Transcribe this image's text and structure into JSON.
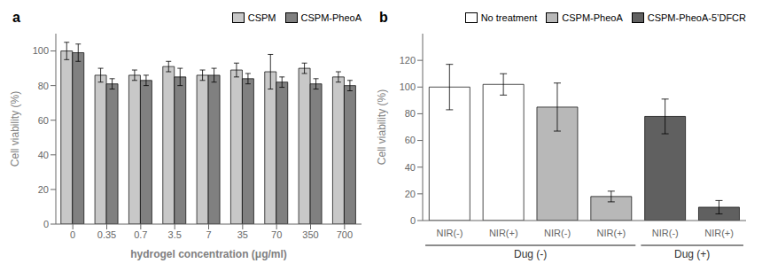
{
  "chart_data": [
    {
      "type": "bar",
      "title": "a",
      "categories": [
        "0",
        "0.35",
        "0.7",
        "3.5",
        "7",
        "35",
        "70",
        "350",
        "700"
      ],
      "series": [
        {
          "name": "CSPM",
          "color": "#c8c8c8",
          "values": [
            100,
            86,
            86,
            91,
            86,
            89,
            88,
            90,
            85
          ],
          "errors": [
            5,
            4,
            3,
            3,
            3,
            4,
            10,
            3,
            3
          ]
        },
        {
          "name": "CSPM-PheoA",
          "color": "#808080",
          "values": [
            99,
            81,
            83,
            85,
            86,
            84,
            82,
            81,
            80
          ],
          "errors": [
            5,
            3,
            3,
            5,
            4,
            3,
            3,
            3,
            3
          ]
        }
      ],
      "xlabel": "hydrogel concentration (μg/ml)",
      "ylabel": "Cell viability (%)",
      "ylim": [
        0,
        110
      ],
      "yticks": [
        0,
        20,
        40,
        60,
        80,
        100
      ],
      "legend": "upper right",
      "grid": false
    },
    {
      "type": "bar",
      "title": "b",
      "categories": [
        "NIR(-)",
        "NIR(+)",
        "NIR(-)",
        "NIR(+)",
        "NIR(-)",
        "NIR(+)"
      ],
      "category_groups": [
        "Dug (-)",
        "Dug (-)",
        "Dug (-)",
        "Dug (-)",
        "Dug (+)",
        "Dug (+)"
      ],
      "values": [
        100,
        102,
        85,
        18,
        78,
        10
      ],
      "errors": [
        17,
        8,
        18,
        4,
        13,
        5
      ],
      "colors": [
        "#ffffff",
        "#ffffff",
        "#b8b8b8",
        "#b8b8b8",
        "#606060",
        "#606060"
      ],
      "legend_entries": [
        {
          "name": "No treatment",
          "color": "#ffffff"
        },
        {
          "name": "CSPM-PheoA",
          "color": "#b8b8b8"
        },
        {
          "name": "CSPM-PheoA-5’DFCR",
          "color": "#606060"
        }
      ],
      "ylabel": "Cell viability (%)",
      "ylim": [
        0,
        140
      ],
      "yticks": [
        0,
        20,
        40,
        60,
        80,
        100,
        120
      ],
      "legend": "upper right",
      "grid": false
    }
  ]
}
